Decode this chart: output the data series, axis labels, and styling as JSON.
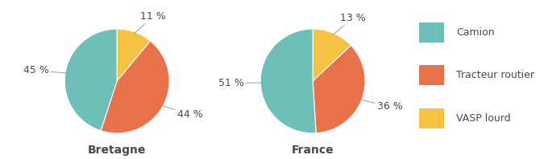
{
  "bretagne": {
    "values": [
      45,
      11,
      44
    ],
    "label": "Bretagne",
    "pct_labels": [
      "45 %",
      "11 %",
      "44 %"
    ],
    "label_angles": [
      180,
      60,
      330
    ]
  },
  "france": {
    "values": [
      51,
      13,
      36
    ],
    "label": "France",
    "pct_labels": [
      "51 %",
      "13 %",
      "36 %"
    ],
    "label_angles": [
      180,
      55,
      330
    ]
  },
  "colors": [
    "#6dbfb8",
    "#f5c242",
    "#e8724a"
  ],
  "legend_labels": [
    "Camion",
    "Tracteur routier",
    "VASP lourd"
  ],
  "legend_colors": [
    "#6dbfb8",
    "#e8724a",
    "#f5c242"
  ],
  "background_color": "#ffffff",
  "text_color": "#4a4a4a",
  "title_fontsize": 10,
  "label_fontsize": 9,
  "startangle": 90
}
